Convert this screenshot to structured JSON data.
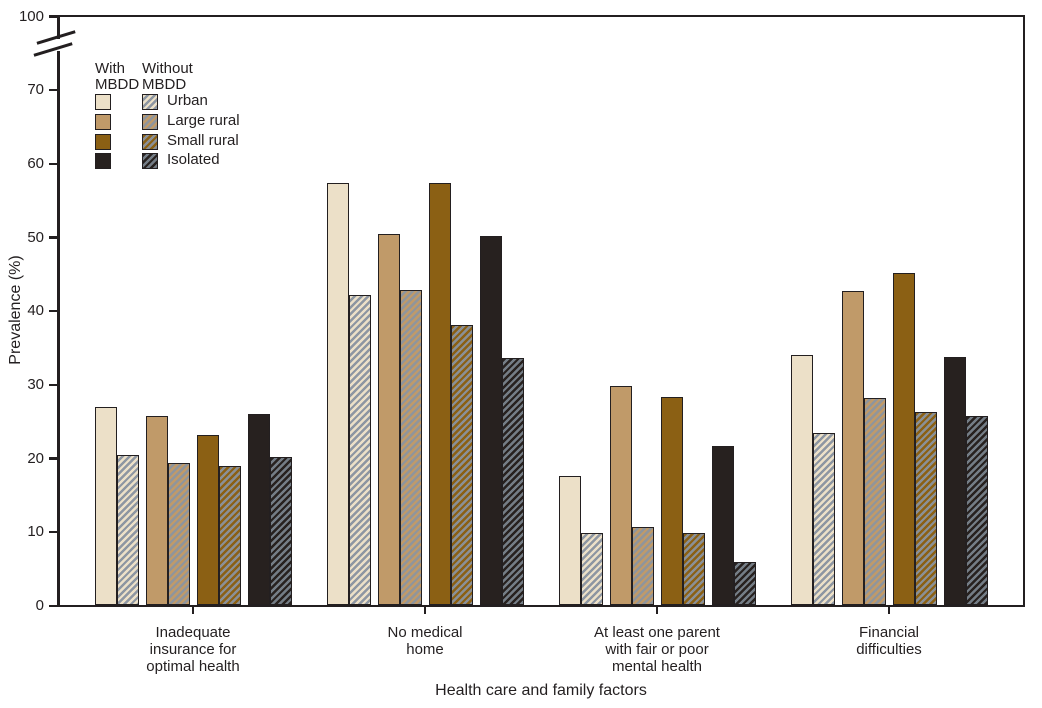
{
  "chart_data": {
    "type": "bar",
    "title": "",
    "xlabel": "Health care and family factors",
    "ylabel": "Prevalence (%)",
    "axis_break": true,
    "ylim": [
      0,
      100
    ],
    "y_ticks": [
      0,
      10,
      20,
      30,
      40,
      50,
      60,
      70
    ],
    "y_top_label": "100",
    "grid": "off",
    "legend_position": "top-left-inside",
    "text_color": "#231f20",
    "categories": [
      [
        "Inadequate",
        "insurance for",
        "optimal health"
      ],
      [
        "No medical",
        "home"
      ],
      [
        "At least one parent",
        "with fair or poor",
        "mental health"
      ],
      [
        "Financial",
        "difficulties"
      ]
    ],
    "legend": {
      "col1_header": [
        "With",
        "MBDD"
      ],
      "col2_header": [
        "Without",
        "MBDD"
      ],
      "rows": [
        {
          "label": "Urban",
          "color": "#ece0c8",
          "stripe": "#8d96a2"
        },
        {
          "label": "Large rural",
          "color": "#c09a69",
          "stripe": "#8f959c"
        },
        {
          "label": "Small rural",
          "color": "#8b6014",
          "stripe": "#8a9097"
        },
        {
          "label": "Isolated",
          "color": "#27211f",
          "stripe": "#747d86"
        }
      ]
    },
    "series": [
      {
        "name": "Urban - With MBDD",
        "class": "Urban",
        "mbdd": "With MBDD",
        "hatched": false,
        "values": [
          27.0,
          57.4,
          17.6,
          34.0
        ]
      },
      {
        "name": "Urban - Without MBDD",
        "class": "Urban",
        "mbdd": "Without MBDD",
        "hatched": true,
        "values": [
          20.4,
          42.1,
          9.9,
          23.4
        ]
      },
      {
        "name": "Large rural - With MBDD",
        "class": "Large rural",
        "mbdd": "With MBDD",
        "hatched": false,
        "values": [
          25.7,
          50.4,
          29.8,
          42.7
        ]
      },
      {
        "name": "Large rural - Without MBDD",
        "class": "Large rural",
        "mbdd": "Without MBDD",
        "hatched": true,
        "values": [
          19.4,
          42.8,
          10.7,
          28.2
        ]
      },
      {
        "name": "Small rural - With MBDD",
        "class": "Small rural",
        "mbdd": "With MBDD",
        "hatched": false,
        "values": [
          23.1,
          57.4,
          28.3,
          45.2
        ]
      },
      {
        "name": "Small rural - Without MBDD",
        "class": "Small rural",
        "mbdd": "Without MBDD",
        "hatched": true,
        "values": [
          18.9,
          38.1,
          9.8,
          26.3
        ]
      },
      {
        "name": "Isolated - With MBDD",
        "class": "Isolated",
        "mbdd": "With MBDD",
        "hatched": false,
        "values": [
          26.0,
          50.2,
          21.6,
          33.8
        ]
      },
      {
        "name": "Isolated - Without MBDD",
        "class": "Isolated",
        "mbdd": "Without MBDD",
        "hatched": true,
        "values": [
          20.1,
          33.6,
          5.9,
          25.7
        ]
      }
    ]
  }
}
